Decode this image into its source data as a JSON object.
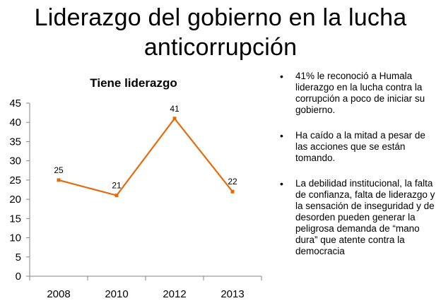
{
  "slide": {
    "title_line1": "Liderazgo del gobierno en la lucha",
    "title_line2": "anticorrupción"
  },
  "chart_data": {
    "type": "line",
    "title": "Tiene liderazgo",
    "categories": [
      "2008",
      "2010",
      "2012",
      "2013"
    ],
    "series": [
      {
        "values": [
          25,
          21,
          41,
          22
        ],
        "color": "#E46C0A"
      }
    ],
    "ylim": [
      0,
      45
    ],
    "yticks": [
      0,
      5,
      10,
      15,
      20,
      25,
      30,
      35,
      40,
      45
    ],
    "grid": false,
    "data_labels": true,
    "marker": "square"
  },
  "bullets": [
    "41% le reconoció a Humala liderazgo en la lucha contra la corrupción a poco de iniciar su gobierno.",
    "Ha caído a la mitad a pesar de las acciones  que se están tomando.",
    "La debilidad institucional, la falta de confianza, falta de liderazgo y la sensación de inseguridad y de desorden pueden generar la peligrosa demanda de “mano dura” que atente contra la democracia"
  ]
}
